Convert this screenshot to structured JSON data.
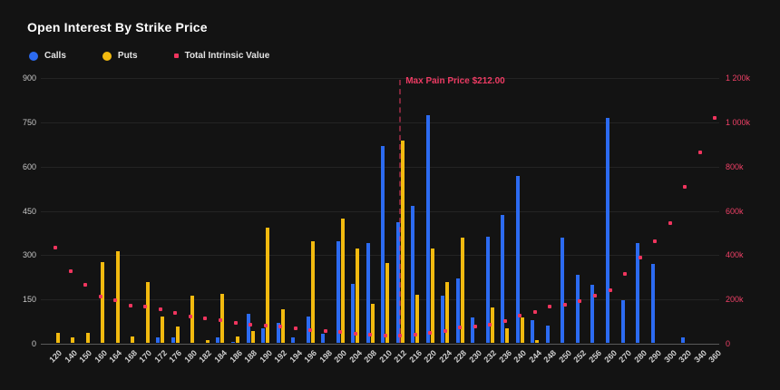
{
  "title": "Open Interest By Strike Price",
  "legend": {
    "calls": {
      "label": "Calls",
      "color": "#2c6bf1"
    },
    "puts": {
      "label": "Puts",
      "color": "#f2ba0f"
    },
    "intrinsic": {
      "label": "Total Intrinsic Value",
      "color": "#f0355e"
    }
  },
  "max_pain": {
    "label": "Max Pain Price $212.00",
    "strike": "212",
    "line_color": "#ed3b63"
  },
  "colors": {
    "background": "#131313",
    "grid": "#242424",
    "axis_line": "#5a5a5a",
    "left_axis_text": "#c7c7c7",
    "right_axis_text": "#ee4066"
  },
  "chart_data": {
    "type": "bar",
    "title": "Open Interest By Strike Price",
    "grid": true,
    "legend_position": "top-left",
    "categories": [
      "120",
      "140",
      "150",
      "160",
      "164",
      "168",
      "170",
      "172",
      "176",
      "180",
      "182",
      "184",
      "186",
      "188",
      "190",
      "192",
      "194",
      "196",
      "198",
      "200",
      "204",
      "208",
      "210",
      "212",
      "216",
      "220",
      "224",
      "228",
      "230",
      "232",
      "236",
      "240",
      "244",
      "248",
      "250",
      "252",
      "256",
      "260",
      "270",
      "280",
      "290",
      "300",
      "320",
      "340",
      "360"
    ],
    "left_axis": {
      "tick_labels": [
        "0",
        "150",
        "300",
        "450",
        "600",
        "750",
        "900"
      ],
      "ticks": [
        0,
        150,
        300,
        450,
        600,
        750,
        900
      ],
      "max": 900
    },
    "right_axis": {
      "tick_labels": [
        "0",
        "200k",
        "400k",
        "600k",
        "800k",
        "1 000k",
        "1 200k"
      ],
      "ticks_k": [
        0,
        200,
        400,
        600,
        800,
        1000,
        1200
      ],
      "max_k": 1200
    },
    "series": [
      {
        "name": "Calls",
        "type": "bar",
        "axis": "left",
        "color": "#2c6bf1",
        "values": [
          0,
          0,
          0,
          0,
          0,
          0,
          0,
          20,
          20,
          0,
          0,
          20,
          4,
          98,
          50,
          68,
          18,
          88,
          31,
          345,
          200,
          338,
          668,
          410,
          464,
          770,
          160,
          218,
          85,
          358,
          433,
          566,
          77,
          59,
          356,
          231,
          197,
          763,
          143,
          338,
          266,
          0,
          18,
          0,
          0
        ]
      },
      {
        "name": "Puts",
        "type": "bar",
        "axis": "left",
        "color": "#f2ba0f",
        "values": [
          34,
          18,
          34,
          272,
          310,
          23,
          205,
          88,
          54,
          160,
          10,
          167,
          21,
          39,
          390,
          115,
          0,
          345,
          0,
          420,
          318,
          133,
          271,
          686,
          162,
          320,
          205,
          356,
          0,
          120,
          50,
          87,
          10,
          0,
          0,
          0,
          0,
          0,
          0,
          0,
          0,
          0,
          0,
          0,
          0
        ]
      },
      {
        "name": "Total Intrinsic Value",
        "type": "scatter",
        "axis": "right",
        "color": "#f0355e",
        "values_k": [
          434,
          326,
          266,
          215,
          196,
          174,
          167,
          157,
          140,
          124,
          113,
          105,
          96,
          88,
          82,
          76,
          70,
          63,
          57,
          53,
          45,
          41,
          38,
          35,
          41,
          49,
          59,
          72,
          79,
          88,
          101,
          126,
          142,
          167,
          177,
          191,
          217,
          240,
          314,
          389,
          464,
          543,
          707,
          864,
          1021
        ]
      }
    ],
    "annotation": {
      "text": "Max Pain Price $212.00",
      "at_category": "212"
    }
  }
}
